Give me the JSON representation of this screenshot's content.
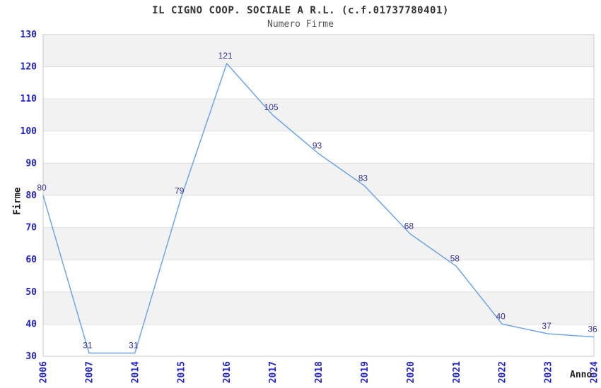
{
  "chart_data": {
    "type": "line",
    "title": "IL CIGNO COOP. SOCIALE A R.L. (c.f.01737780401)",
    "subtitle": "Numero Firme",
    "xlabel": "Anno",
    "ylabel": "Firme",
    "categories": [
      "2006",
      "2007",
      "2014",
      "2015",
      "2016",
      "2017",
      "2018",
      "2019",
      "2020",
      "2021",
      "2022",
      "2023",
      "2024"
    ],
    "values": [
      80,
      31,
      31,
      79,
      121,
      105,
      93,
      83,
      68,
      58,
      40,
      37,
      36
    ],
    "ylim": [
      30,
      130
    ],
    "ytick_step": 10,
    "yticks": [
      30,
      40,
      50,
      60,
      70,
      80,
      90,
      100,
      110,
      120,
      130
    ],
    "grid": "horizontal-bands-alternating",
    "legend": "none",
    "markers": "none",
    "colors": {
      "line": "#6FA5E6",
      "tick_label": "#2222CC",
      "point_label": "#333399",
      "band_gray": "#F2F2F2",
      "band_white": "#FFFFFF",
      "grid_line": "#E0E0E0",
      "plot_border": "#C9C9C9",
      "title": "#333333",
      "subtitle": "#555555",
      "axis_title": "#1A1A1A",
      "background": "#FFFFFF"
    }
  }
}
